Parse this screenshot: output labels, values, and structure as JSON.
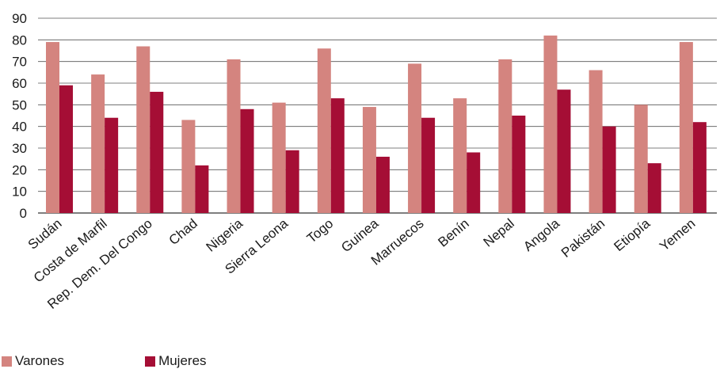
{
  "chart_data": {
    "type": "bar",
    "title": "",
    "xlabel": "",
    "ylabel": "",
    "ylim": [
      0,
      90
    ],
    "yticks": [
      0,
      10,
      20,
      30,
      40,
      50,
      60,
      70,
      80,
      90
    ],
    "grid": "horizontal",
    "legend_position": "bottom-left",
    "categories": [
      "Sudán",
      "Costa de Marfil",
      "Rep. Dem. Del Congo",
      "Chad",
      "Nigeria",
      "Sierra Leona",
      "Togo",
      "Guinea",
      "Marruecos",
      "Benín",
      "Nepal",
      "Angola",
      "Pakistán",
      "Etiopía",
      "Yemen"
    ],
    "series": [
      {
        "name": "Varones",
        "color": "#d4847f",
        "values": [
          79,
          64,
          77,
          43,
          71,
          51,
          76,
          49,
          69,
          53,
          71,
          82,
          66,
          50,
          79
        ]
      },
      {
        "name": "Mujeres",
        "color": "#a50e35",
        "values": [
          59,
          44,
          56,
          22,
          48,
          29,
          53,
          26,
          44,
          28,
          45,
          57,
          40,
          23,
          42
        ]
      }
    ]
  }
}
